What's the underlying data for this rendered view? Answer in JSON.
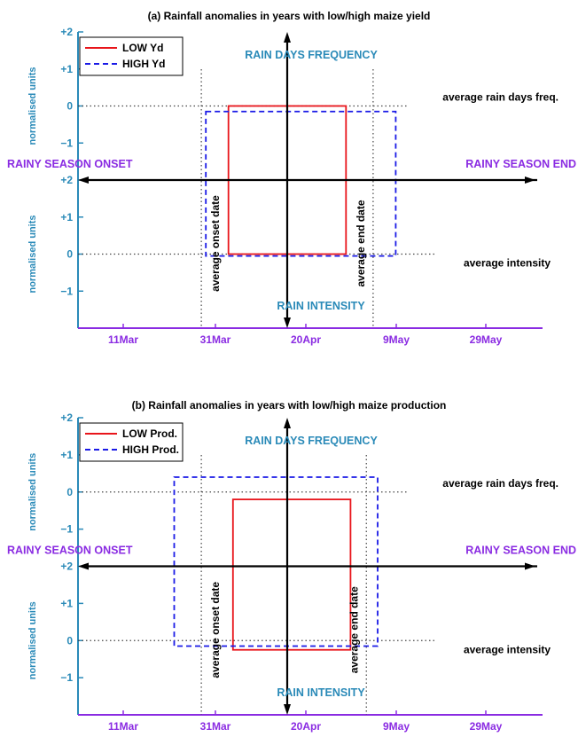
{
  "colors": {
    "low": "#e8151b",
    "high": "#1a1ae6",
    "xaxis": "#8a2be2",
    "yaxis": "#2a8ab8",
    "title_text": "#000000",
    "quadrant_label": "#2a8ab8",
    "season_label": "#8a2be2",
    "axes_black": "#000000",
    "dotted": "#444444"
  },
  "chart_data": [
    {
      "type": "line",
      "title": "(a) Rainfall anomalies in years with low/high maize yield",
      "ylabel_top": "normalised units",
      "ylabel_bottom": "normalised units",
      "top_ticks": [
        "+2",
        "+1",
        "0",
        "−1"
      ],
      "bottom_ticks": [
        "−1",
        "0",
        "+1",
        "+2"
      ],
      "x_ticks": [
        "11Mar",
        "31Mar",
        "20Apr",
        "9May",
        "29May"
      ],
      "xlim_days": [
        -32,
        32
      ],
      "legend": {
        "placement": "top-left",
        "entries": [
          "LOW Yd",
          "HIGH Yd"
        ]
      },
      "labels": {
        "rain_days_freq": "RAIN DAYS FREQUENCY",
        "rain_intensity": "RAIN INTENSITY",
        "season_onset": "RAINY SEASON ONSET",
        "season_end": "RAINY SEASON END",
        "avg_onset": "average  onset  date",
        "avg_end": "average  end  date",
        "avg_rain_days": "average rain days freq.",
        "avg_intensity": "average intensity"
      },
      "series": [
        {
          "name": "LOW Yd",
          "style": "solid",
          "onset": -13,
          "end": 13,
          "freq_top": 0,
          "intensity_bottom": 0
        },
        {
          "name": "HIGH Yd",
          "style": "dashed",
          "onset": -18,
          "end": 24,
          "freq_top": -0.15,
          "intensity_bottom": -0.05
        }
      ],
      "avg_onset_date": -19,
      "avg_end_date": 19
    },
    {
      "type": "line",
      "title": "(b) Rainfall anomalies in years with low/high maize production",
      "ylabel_top": "normalised units",
      "ylabel_bottom": "normalised units",
      "top_ticks": [
        "+2",
        "+1",
        "0",
        "−1"
      ],
      "bottom_ticks": [
        "−1",
        "0",
        "+1",
        "+2"
      ],
      "x_ticks": [
        "11Mar",
        "31Mar",
        "20Apr",
        "9May",
        "29May"
      ],
      "xlim_days": [
        -32,
        32
      ],
      "legend": {
        "placement": "top-left",
        "entries": [
          "LOW Prod.",
          "HIGH Prod."
        ]
      },
      "labels": {
        "rain_days_freq": "RAIN DAYS FREQUENCY",
        "rain_intensity": "RAIN INTENSITY",
        "season_onset": "RAINY SEASON ONSET",
        "season_end": "RAINY SEASON END",
        "avg_onset": "average  onset  date",
        "avg_end": "average  end  date",
        "avg_rain_days": "average rain days freq.",
        "avg_intensity": "average intensity"
      },
      "series": [
        {
          "name": "LOW Prod.",
          "style": "solid",
          "onset": -12,
          "end": 14,
          "freq_top": -0.2,
          "intensity_bottom": -0.25
        },
        {
          "name": "HIGH Prod.",
          "style": "dashed",
          "onset": -25,
          "end": 20,
          "freq_top": 0.4,
          "intensity_bottom": -0.15
        }
      ],
      "avg_onset_date": -19,
      "avg_end_date": 17.5
    }
  ]
}
